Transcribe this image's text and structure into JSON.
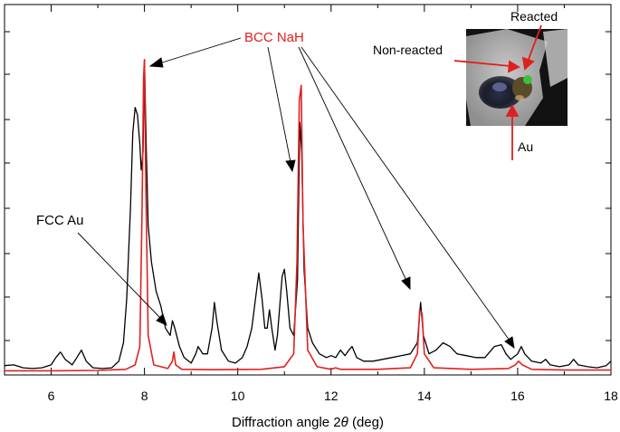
{
  "chart_data": {
    "type": "line",
    "xlabel_prefix": "Diffraction angle 2",
    "xlabel_theta": "θ",
    "xlabel_suffix": " (deg)",
    "xlim": [
      5,
      18
    ],
    "x_ticks": [
      "6",
      "8",
      "10",
      "12",
      "14",
      "16",
      "18"
    ],
    "grid": false,
    "series": [
      {
        "color": "#000000",
        "points": [
          [
            5.0,
            0.018
          ],
          [
            5.2,
            0.02
          ],
          [
            5.4,
            0.012
          ],
          [
            5.6,
            0.01
          ],
          [
            5.8,
            0.012
          ],
          [
            6.0,
            0.02
          ],
          [
            6.1,
            0.04
          ],
          [
            6.2,
            0.055
          ],
          [
            6.3,
            0.035
          ],
          [
            6.45,
            0.02
          ],
          [
            6.55,
            0.04
          ],
          [
            6.65,
            0.06
          ],
          [
            6.75,
            0.03
          ],
          [
            6.9,
            0.012
          ],
          [
            7.1,
            0.01
          ],
          [
            7.3,
            0.012
          ],
          [
            7.45,
            0.03
          ],
          [
            7.55,
            0.08
          ],
          [
            7.62,
            0.2
          ],
          [
            7.7,
            0.45
          ],
          [
            7.75,
            0.65
          ],
          [
            7.8,
            0.72
          ],
          [
            7.85,
            0.7
          ],
          [
            7.9,
            0.62
          ],
          [
            7.93,
            0.55
          ],
          [
            7.97,
            0.6
          ],
          [
            8.0,
            0.85
          ],
          [
            8.04,
            0.6
          ],
          [
            8.08,
            0.4
          ],
          [
            8.15,
            0.3
          ],
          [
            8.25,
            0.22
          ],
          [
            8.35,
            0.18
          ],
          [
            8.45,
            0.12
          ],
          [
            8.55,
            0.1
          ],
          [
            8.6,
            0.14
          ],
          [
            8.65,
            0.12
          ],
          [
            8.75,
            0.07
          ],
          [
            8.85,
            0.04
          ],
          [
            9.0,
            0.025
          ],
          [
            9.1,
            0.05
          ],
          [
            9.15,
            0.07
          ],
          [
            9.25,
            0.05
          ],
          [
            9.35,
            0.05
          ],
          [
            9.45,
            0.12
          ],
          [
            9.5,
            0.19
          ],
          [
            9.55,
            0.14
          ],
          [
            9.65,
            0.06
          ],
          [
            9.8,
            0.03
          ],
          [
            9.95,
            0.025
          ],
          [
            10.1,
            0.04
          ],
          [
            10.2,
            0.07
          ],
          [
            10.3,
            0.12
          ],
          [
            10.38,
            0.2
          ],
          [
            10.45,
            0.27
          ],
          [
            10.52,
            0.2
          ],
          [
            10.58,
            0.12
          ],
          [
            10.63,
            0.12
          ],
          [
            10.68,
            0.17
          ],
          [
            10.73,
            0.12
          ],
          [
            10.8,
            0.06
          ],
          [
            10.85,
            0.1
          ],
          [
            10.9,
            0.18
          ],
          [
            10.95,
            0.26
          ],
          [
            11.0,
            0.28
          ],
          [
            11.05,
            0.22
          ],
          [
            11.12,
            0.12
          ],
          [
            11.2,
            0.1
          ],
          [
            11.28,
            0.25
          ],
          [
            11.33,
            0.68
          ],
          [
            11.37,
            0.6
          ],
          [
            11.42,
            0.28
          ],
          [
            11.5,
            0.12
          ],
          [
            11.6,
            0.08
          ],
          [
            11.75,
            0.05
          ],
          [
            11.9,
            0.04
          ],
          [
            12.0,
            0.045
          ],
          [
            12.1,
            0.04
          ],
          [
            12.2,
            0.06
          ],
          [
            12.3,
            0.045
          ],
          [
            12.38,
            0.06
          ],
          [
            12.45,
            0.07
          ],
          [
            12.55,
            0.04
          ],
          [
            12.7,
            0.03
          ],
          [
            12.9,
            0.03
          ],
          [
            13.1,
            0.035
          ],
          [
            13.3,
            0.04
          ],
          [
            13.5,
            0.045
          ],
          [
            13.7,
            0.05
          ],
          [
            13.85,
            0.08
          ],
          [
            13.92,
            0.19
          ],
          [
            13.98,
            0.1
          ],
          [
            14.1,
            0.05
          ],
          [
            14.25,
            0.06
          ],
          [
            14.4,
            0.08
          ],
          [
            14.55,
            0.07
          ],
          [
            14.7,
            0.05
          ],
          [
            14.9,
            0.045
          ],
          [
            15.1,
            0.04
          ],
          [
            15.3,
            0.04
          ],
          [
            15.5,
            0.07
          ],
          [
            15.65,
            0.075
          ],
          [
            15.75,
            0.05
          ],
          [
            15.85,
            0.035
          ],
          [
            16.0,
            0.05
          ],
          [
            16.08,
            0.07
          ],
          [
            16.15,
            0.05
          ],
          [
            16.3,
            0.03
          ],
          [
            16.5,
            0.025
          ],
          [
            16.6,
            0.035
          ],
          [
            16.7,
            0.02
          ],
          [
            16.9,
            0.015
          ],
          [
            17.1,
            0.02
          ],
          [
            17.2,
            0.035
          ],
          [
            17.3,
            0.02
          ],
          [
            17.5,
            0.015
          ],
          [
            17.7,
            0.012
          ],
          [
            17.9,
            0.018
          ],
          [
            18.0,
            0.03
          ]
        ]
      },
      {
        "color": "#e02020",
        "points": [
          [
            5.0,
            0.004
          ],
          [
            6.0,
            0.004
          ],
          [
            7.0,
            0.005
          ],
          [
            7.6,
            0.008
          ],
          [
            7.8,
            0.02
          ],
          [
            7.9,
            0.07
          ],
          [
            7.95,
            0.45
          ],
          [
            7.98,
            0.8
          ],
          [
            8.0,
            0.85
          ],
          [
            8.03,
            0.5
          ],
          [
            8.08,
            0.1
          ],
          [
            8.2,
            0.02
          ],
          [
            8.5,
            0.01
          ],
          [
            8.6,
            0.03
          ],
          [
            8.63,
            0.055
          ],
          [
            8.67,
            0.02
          ],
          [
            8.8,
            0.008
          ],
          [
            9.5,
            0.007
          ],
          [
            10.5,
            0.008
          ],
          [
            11.0,
            0.015
          ],
          [
            11.2,
            0.05
          ],
          [
            11.27,
            0.3
          ],
          [
            11.32,
            0.74
          ],
          [
            11.36,
            0.78
          ],
          [
            11.4,
            0.4
          ],
          [
            11.5,
            0.06
          ],
          [
            11.7,
            0.015
          ],
          [
            12.0,
            0.008
          ],
          [
            12.1,
            0.012
          ],
          [
            12.2,
            0.008
          ],
          [
            13.0,
            0.008
          ],
          [
            13.7,
            0.012
          ],
          [
            13.85,
            0.05
          ],
          [
            13.9,
            0.17
          ],
          [
            13.95,
            0.16
          ],
          [
            14.0,
            0.05
          ],
          [
            14.2,
            0.012
          ],
          [
            15.0,
            0.008
          ],
          [
            15.8,
            0.01
          ],
          [
            15.95,
            0.02
          ],
          [
            16.02,
            0.03
          ],
          [
            16.1,
            0.02
          ],
          [
            16.3,
            0.008
          ],
          [
            17.0,
            0.006
          ],
          [
            18.0,
            0.006
          ]
        ]
      }
    ],
    "annotations": {
      "bcc": {
        "text": "BCC NaH",
        "color": "#e02020"
      },
      "fcc": {
        "text": "FCC Au",
        "color": "#000000"
      }
    },
    "inset": {
      "reacted": "Reacted",
      "non_reacted": "Non-reacted",
      "au": "Au",
      "arrow_color": "#e02020"
    }
  }
}
